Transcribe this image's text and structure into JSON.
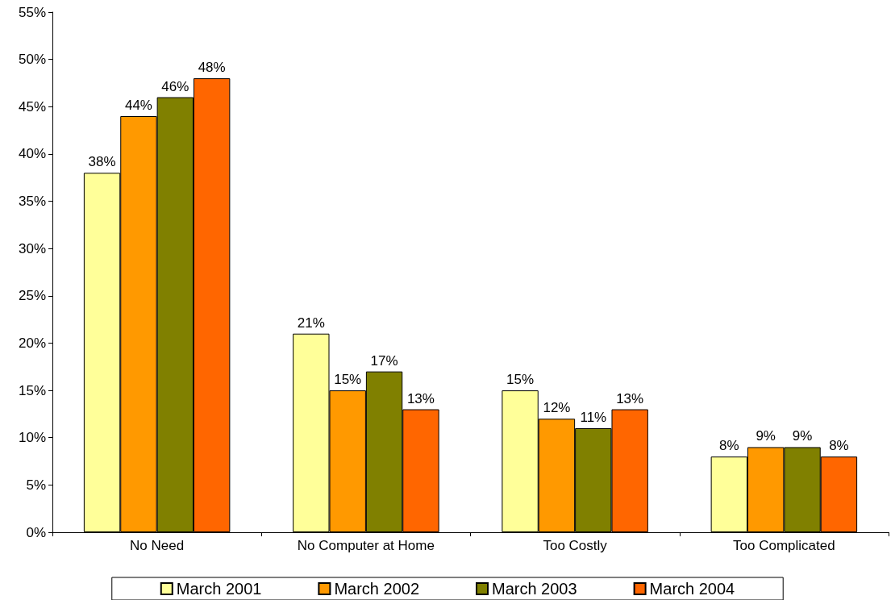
{
  "chart_data": {
    "type": "bar",
    "categories": [
      "No Need",
      "No Computer at Home",
      "Too Costly",
      "Too Complicated"
    ],
    "series": [
      {
        "name": "March 2001",
        "color": "#ffff99",
        "values": [
          38,
          21,
          15,
          8
        ],
        "value_labels": [
          "38%",
          "21%",
          "15%",
          "8%"
        ]
      },
      {
        "name": "March 2002",
        "color": "#ff9900",
        "values": [
          44,
          15,
          12,
          9
        ],
        "value_labels": [
          "44%",
          "15%",
          "12%",
          "9%"
        ]
      },
      {
        "name": "March 2003",
        "color": "#808000",
        "values": [
          46,
          17,
          11,
          9
        ],
        "value_labels": [
          "46%",
          "17%",
          "11%",
          "9%"
        ]
      },
      {
        "name": "March 2004",
        "color": "#ff6600",
        "values": [
          48,
          13,
          13,
          8
        ],
        "value_labels": [
          "48%",
          "13%",
          "13%",
          "8%"
        ]
      }
    ],
    "ylim": [
      0,
      55
    ],
    "yticks": [
      {
        "value": 0,
        "label": "0%"
      },
      {
        "value": 5,
        "label": "5%"
      },
      {
        "value": 10,
        "label": "10%"
      },
      {
        "value": 15,
        "label": "15%"
      },
      {
        "value": 20,
        "label": "20%"
      },
      {
        "value": 25,
        "label": "25%"
      },
      {
        "value": 30,
        "label": "30%"
      },
      {
        "value": 35,
        "label": "35%"
      },
      {
        "value": 40,
        "label": "40%"
      },
      {
        "value": 45,
        "label": "45%"
      },
      {
        "value": 50,
        "label": "50%"
      },
      {
        "value": 55,
        "label": "55%"
      }
    ],
    "grid": false,
    "legend": "bottom"
  }
}
